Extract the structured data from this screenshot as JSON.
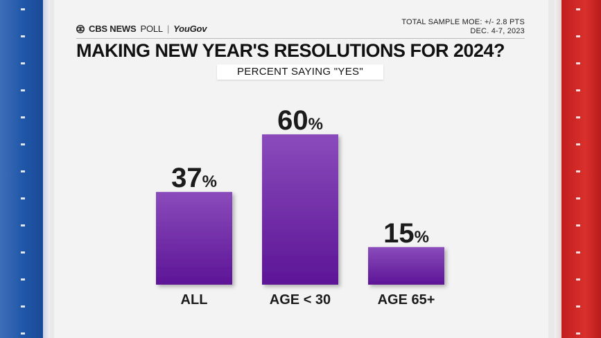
{
  "brand": {
    "network": "CBS NEWS",
    "poll": "POLL",
    "partner": "YouGov"
  },
  "moe": {
    "line1": "TOTAL SAMPLE MOE: +/- 2.8 PTS",
    "line2": "DEC. 4-7, 2023"
  },
  "colors": {
    "bar_top": "#8a4bbb",
    "bar_bottom": "#5c1596",
    "left_band": "#2056a8",
    "right_band": "#d9302c"
  },
  "chart_data": {
    "type": "bar",
    "title": "MAKING NEW YEAR'S RESOLUTIONS FOR 2024?",
    "subtitle": "PERCENT SAYING \"YES\"",
    "categories": [
      "ALL",
      "AGE < 30",
      "AGE 65+"
    ],
    "values": [
      37,
      60,
      15
    ],
    "value_suffix": "%",
    "ylim": [
      0,
      60
    ],
    "grid": false,
    "legend": "none"
  }
}
